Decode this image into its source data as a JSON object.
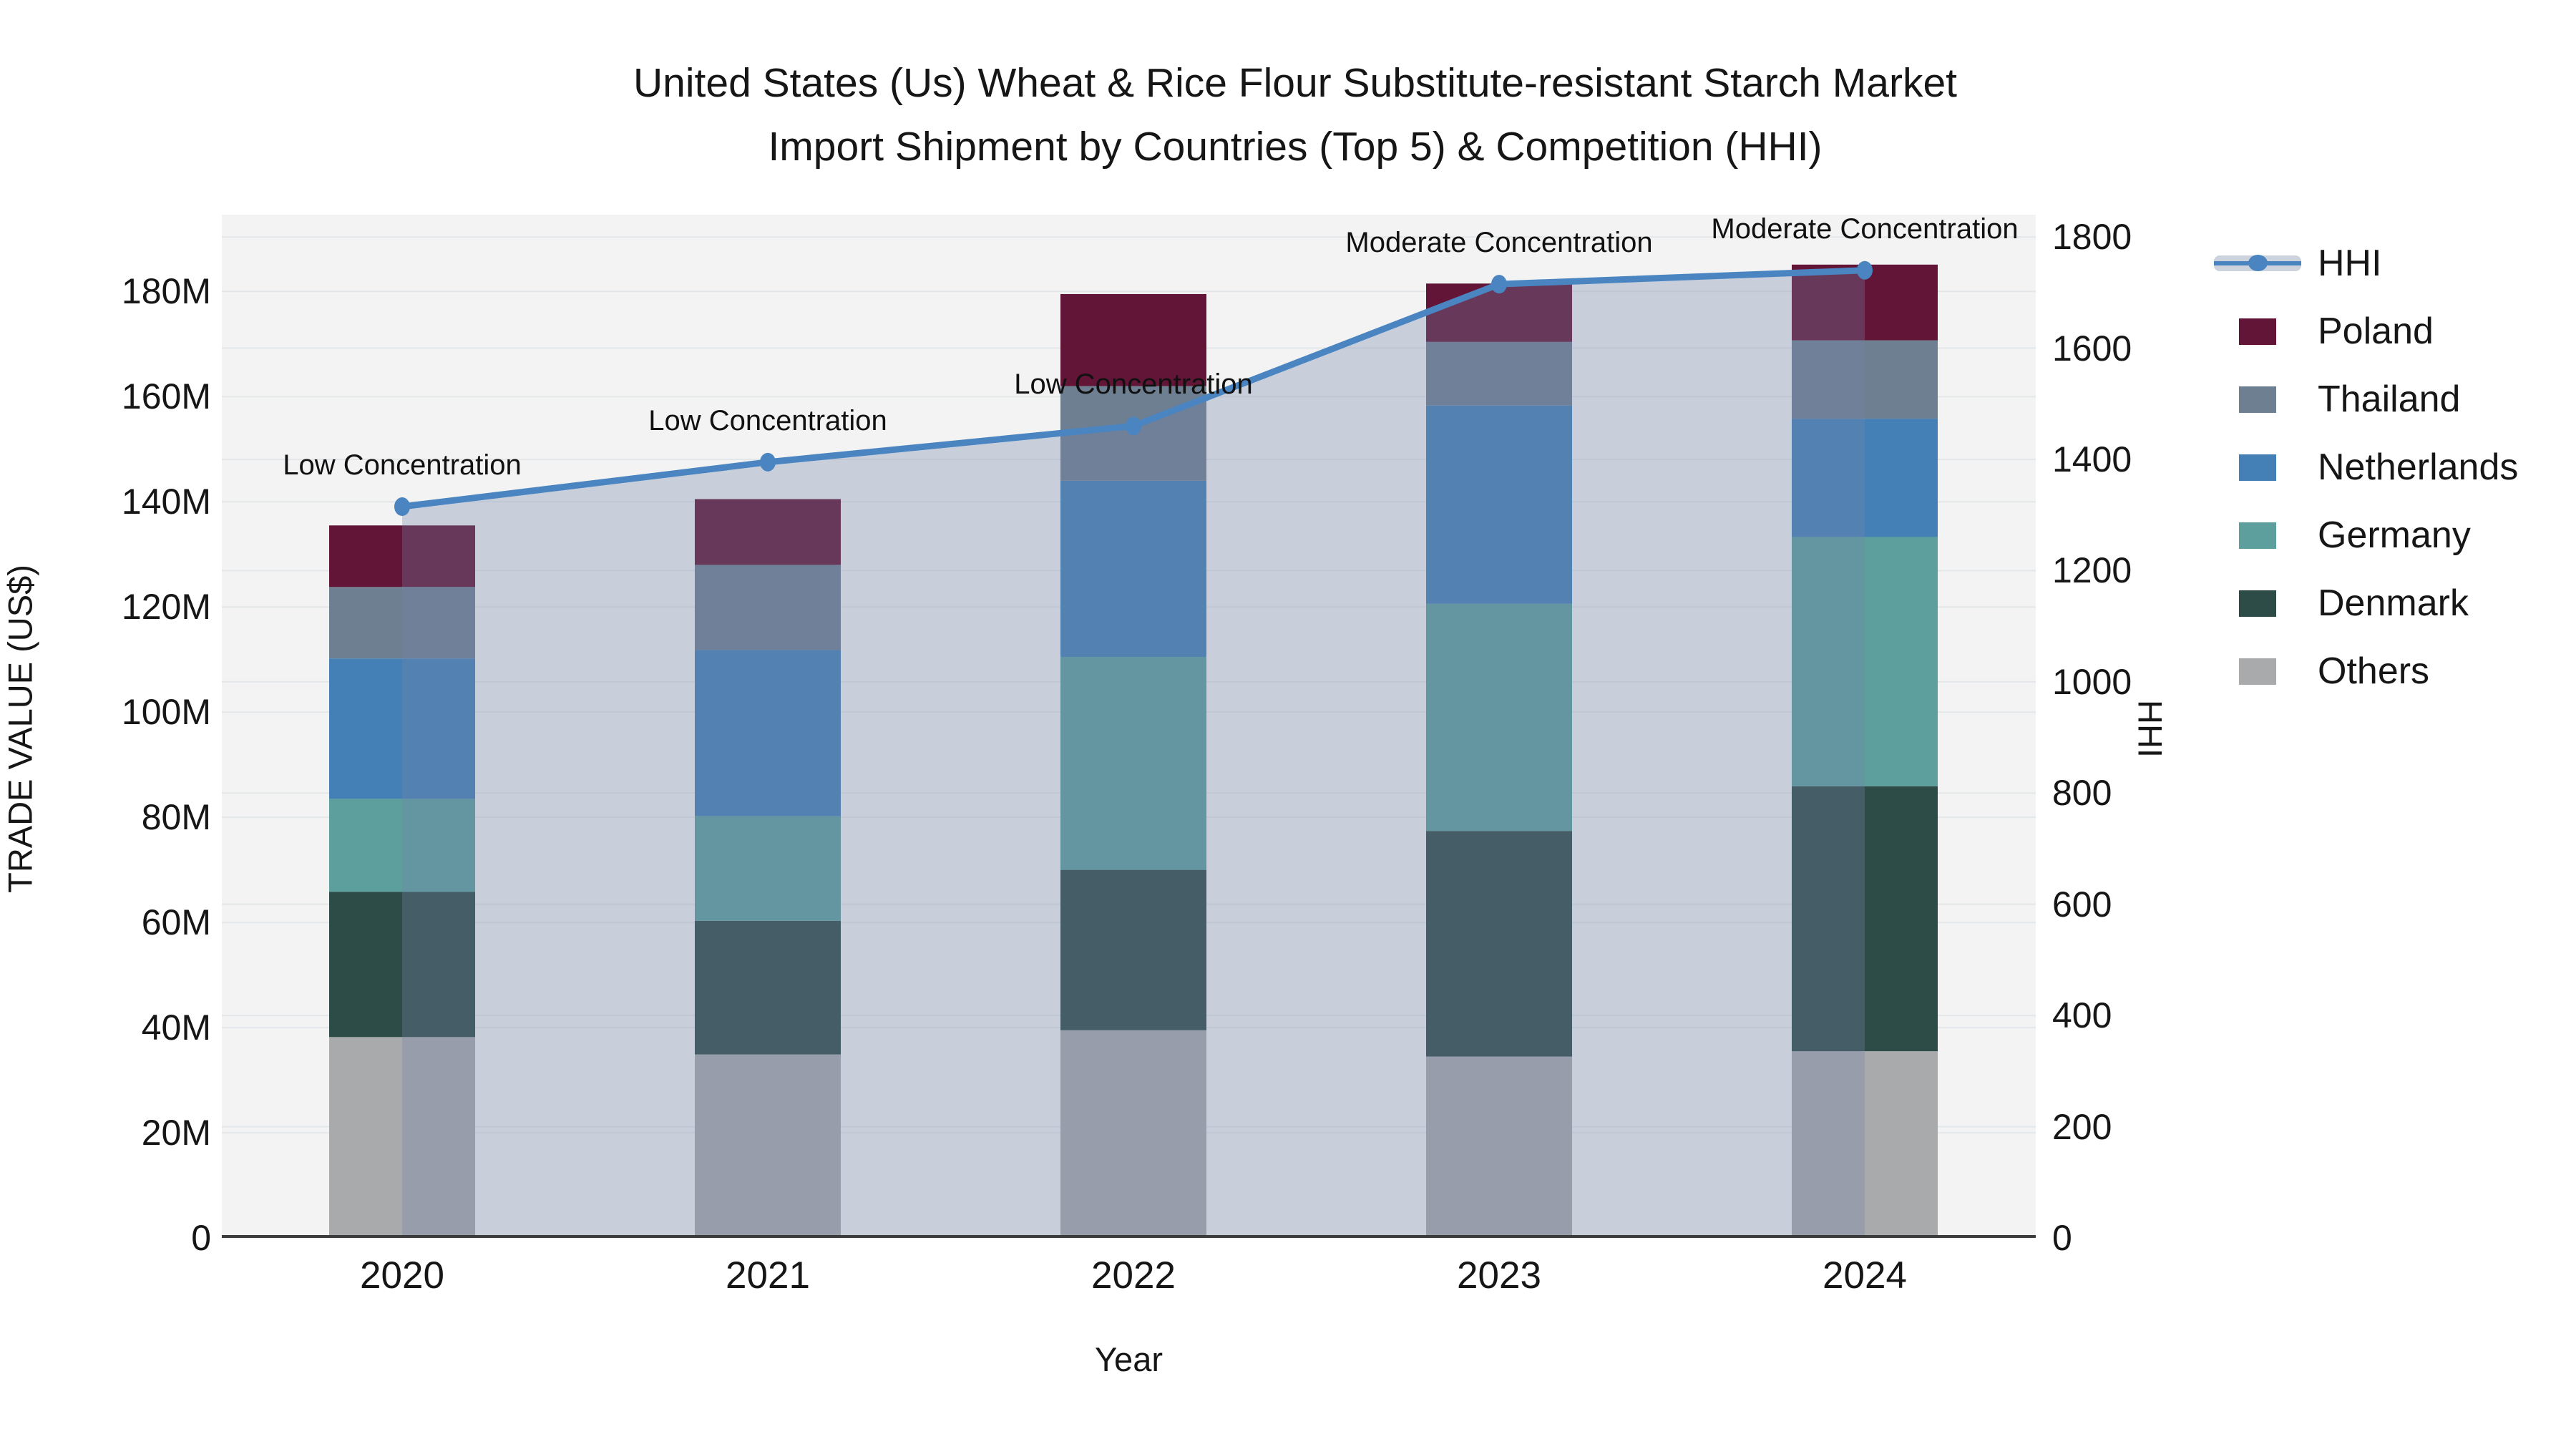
{
  "chart_data": {
    "type": "bar",
    "subtype": "stacked-bars-with-line-area-overlay",
    "title_line1": "United States (Us) Wheat & Rice Flour Substitute-resistant Starch Market",
    "title_line2": "Import Shipment by Countries (Top 5) & Competition (HHI)",
    "xlabel": "Year",
    "ylabel": "TRADE VALUE (US$)",
    "y2label": "HHI",
    "categories": [
      "2020",
      "2021",
      "2022",
      "2023",
      "2024"
    ],
    "series": [
      {
        "name": "Others",
        "color": "#a9aaac",
        "values": [
          38.2,
          34.9,
          39.5,
          34.5,
          35.5
        ]
      },
      {
        "name": "Denmark",
        "color": "#2e4c47",
        "values": [
          27.6,
          25.4,
          30.5,
          42.9,
          50.4
        ]
      },
      {
        "name": "Germany",
        "color": "#5c9f9c",
        "values": [
          17.7,
          19.9,
          40.5,
          43.2,
          47.4
        ]
      },
      {
        "name": "Netherlands",
        "color": "#4480b6",
        "values": [
          26.7,
          31.6,
          33.5,
          37.7,
          22.5
        ]
      },
      {
        "name": "Thailand",
        "color": "#6e7f91",
        "values": [
          13.6,
          16.2,
          18.0,
          12.1,
          14.9
        ]
      },
      {
        "name": "Poland",
        "color": "#621536",
        "values": [
          11.7,
          12.5,
          17.5,
          11.1,
          14.4
        ]
      }
    ],
    "bar_totals_musd": [
      135.5,
      140.5,
      179.5,
      181.5,
      185.1
    ],
    "hhi": {
      "name": "HHI",
      "values": [
        1315,
        1395,
        1460,
        1715,
        1740
      ],
      "line_color": "#4a85c1",
      "area_fill": "rgba(115,132,168,0.32)",
      "legend_band_color": "#ccd3dd"
    },
    "annotations": [
      {
        "year": "2020",
        "index": 0,
        "text": "Low Concentration"
      },
      {
        "year": "2021",
        "index": 1,
        "text": "Low Concentration"
      },
      {
        "year": "2022",
        "index": 2,
        "text": "Low Concentration"
      },
      {
        "year": "2023",
        "index": 3,
        "text": "Moderate Concentration"
      },
      {
        "year": "2024",
        "index": 4,
        "text": "Moderate Concentration"
      }
    ],
    "y_ticks": [
      "0",
      "20M",
      "40M",
      "60M",
      "80M",
      "100M",
      "120M",
      "140M",
      "160M",
      "180M"
    ],
    "y_tick_values": [
      0,
      20,
      40,
      60,
      80,
      100,
      120,
      140,
      160,
      180
    ],
    "y2_ticks": [
      "0",
      "200",
      "400",
      "600",
      "800",
      "1000",
      "1200",
      "1400",
      "1600",
      "1800"
    ],
    "y2_tick_values": [
      0,
      200,
      400,
      600,
      800,
      1000,
      1200,
      1400,
      1600,
      1800
    ],
    "ylim": [
      0,
      194.6
    ],
    "y2lim": [
      0,
      1840
    ],
    "legend_order": [
      "HHI",
      "Poland",
      "Thailand",
      "Netherlands",
      "Germany",
      "Denmark",
      "Others"
    ],
    "grid": true,
    "legend_position": "right",
    "plot_bg": "#f2f3f2",
    "gridline_color": "#e4e7ea",
    "axisline_color": "#3c3c3c",
    "text_color": "#161616"
  }
}
